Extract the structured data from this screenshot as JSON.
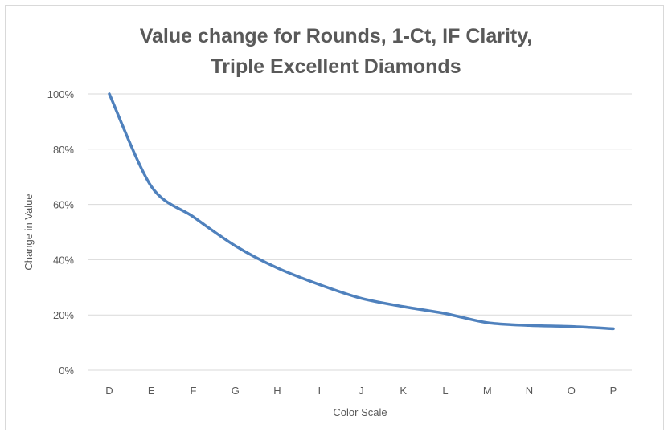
{
  "chart_data": {
    "type": "line",
    "title_lines": [
      "Value change for Rounds, 1-Ct, IF Clarity,",
      "Triple Excellent Diamonds"
    ],
    "xlabel": "Color Scale",
    "ylabel": "Change in Value",
    "categories": [
      "D",
      "E",
      "F",
      "G",
      "H",
      "I",
      "J",
      "K",
      "L",
      "M",
      "N",
      "O",
      "P"
    ],
    "series": [
      {
        "values": [
          100,
          66.5,
          55.5,
          45,
          37,
          31,
          26,
          23,
          20.5,
          17.2,
          16.2,
          15.8,
          15
        ]
      }
    ],
    "ylim": [
      0,
      100
    ],
    "yticks": [
      "0%",
      "20%",
      "40%",
      "60%",
      "80%",
      "100%"
    ],
    "grid": true,
    "legend": "none",
    "line_color": "#4f81bd",
    "grid_color": "#d9d9d9"
  }
}
